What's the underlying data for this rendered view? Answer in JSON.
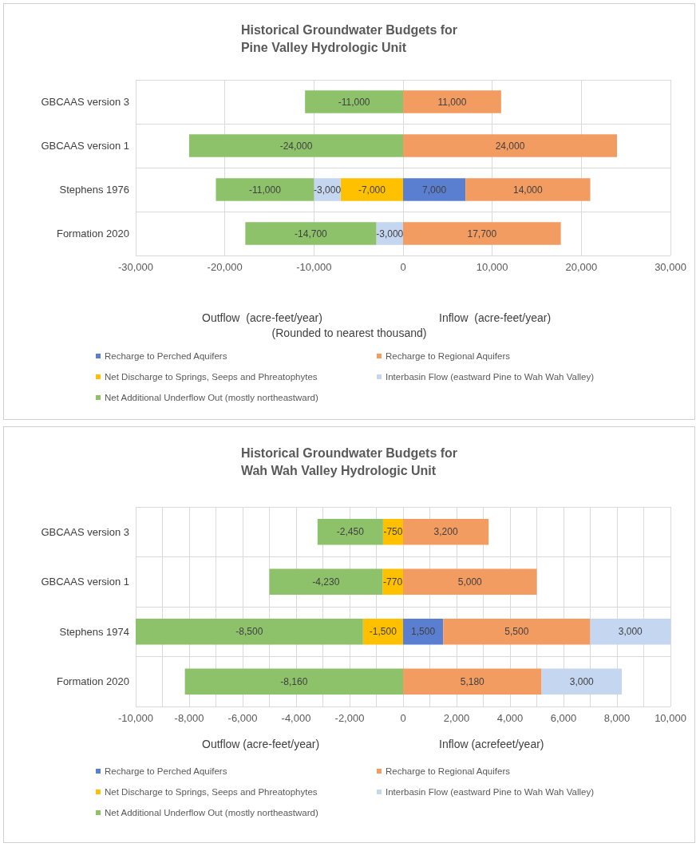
{
  "chart_data": [
    {
      "type": "bar",
      "orientation": "horizontal",
      "stacked": true,
      "title": "Historical Groundwater Budgets for\nPine Valley Hydrologic Unit",
      "xlabel": "Outflow  (acre-feet/year)",
      "annotations": [
        "Inflow  (acre-feet/year)",
        "(Rounded to nearest thousand)"
      ],
      "categories": [
        "GBCAAS version 3",
        "GBCAAS version 1",
        "Stephens 1976",
        "Formation 2020"
      ],
      "series": [
        {
          "name": "Recharge to Perched Aquifers",
          "color": "#5b7fd0",
          "values": [
            null,
            null,
            7000,
            null
          ],
          "value_labels": [
            null,
            null,
            "7,000",
            null
          ]
        },
        {
          "name": "Recharge to Regional Aquifers",
          "color": "#f39c62",
          "values": [
            11000,
            24000,
            14000,
            17700
          ],
          "value_labels": [
            "11,000",
            "24,000",
            "14,000",
            "17,700"
          ]
        },
        {
          "name": "Net Discharge to Springs, Seeps and Phreatophytes",
          "color": "#ffc000",
          "values": [
            null,
            null,
            -7000,
            null
          ],
          "value_labels": [
            null,
            null,
            "-7,000",
            null
          ]
        },
        {
          "name": "Interbasin Flow (eastward Pine to Wah Wah Valley)",
          "color": "#c5d6f0",
          "values": [
            null,
            null,
            -3000,
            -3000
          ],
          "value_labels": [
            null,
            null,
            "-3,000",
            "-3,000"
          ]
        },
        {
          "name": "Net Additional Underflow Out (mostly northeastward)",
          "color": "#8dc26b",
          "values": [
            -11000,
            -24000,
            -11000,
            -14700
          ],
          "value_labels": [
            "-11,000",
            "-24,000",
            "-11,000",
            "-14,700"
          ]
        }
      ],
      "xlim": [
        -30000,
        30000
      ],
      "xticks": [
        {
          "value": -30000,
          "label": "-30,000"
        },
        {
          "value": -20000,
          "label": "-20,000"
        },
        {
          "value": -10000,
          "label": "-10,000"
        },
        0,
        {
          "value": 10000,
          "label": "10,000"
        },
        {
          "value": 20000,
          "label": "20,000"
        },
        {
          "value": 30000,
          "label": "30,000"
        }
      ],
      "grid": true,
      "legend": "bottom"
    },
    {
      "type": "bar",
      "orientation": "horizontal",
      "stacked": true,
      "title": "Historical Groundwater Budgets for\nWah Wah Valley Hydrologic Unit",
      "xlabel": "Outflow (acre-feet/year)",
      "annotations": [
        "Inflow (acrefeet/year)"
      ],
      "categories": [
        "GBCAAS version 3",
        "GBCAAS version 1",
        "Stephens 1974",
        "Formation 2020"
      ],
      "series": [
        {
          "name": "Recharge to Perched Aquifers",
          "color": "#5b7fd0",
          "values": [
            null,
            null,
            1500,
            null
          ],
          "value_labels": [
            null,
            null,
            "1,500",
            null
          ]
        },
        {
          "name": "Recharge to Regional Aquifers",
          "color": "#f39c62",
          "values": [
            3200,
            5000,
            5500,
            5180
          ],
          "value_labels": [
            "3,200",
            "5,000",
            "5,500",
            "5,180"
          ]
        },
        {
          "name": "Net Discharge to Springs, Seeps and Phreatophytes",
          "color": "#ffc000",
          "values": [
            -750,
            -770,
            -1500,
            null
          ],
          "value_labels": [
            "-750",
            "-770",
            "-1,500",
            null
          ]
        },
        {
          "name": "Interbasin Flow (eastward Pine to Wah Wah Valley)",
          "color": "#c5d6f0",
          "values": [
            null,
            null,
            3000,
            3000
          ],
          "value_labels": [
            null,
            null,
            "3,000",
            "3,000"
          ]
        },
        {
          "name": "Net Additional Underflow Out (mostly northeastward)",
          "color": "#8dc26b",
          "values": [
            -2450,
            -4230,
            -8500,
            -8160
          ],
          "value_labels": [
            "-2,450",
            "-4,230",
            "-8,500",
            "-8,160"
          ]
        }
      ],
      "xlim": [
        -10000,
        10000
      ],
      "xticks": [
        {
          "value": -10000,
          "label": "-10,000"
        },
        {
          "value": -9000,
          "label": null
        },
        {
          "value": -8000,
          "label": "-8,000"
        },
        {
          "value": -7000,
          "label": null
        },
        {
          "value": -6000,
          "label": "-6,000"
        },
        {
          "value": -5000,
          "label": null
        },
        {
          "value": -4000,
          "label": "-4,000"
        },
        {
          "value": -3000,
          "label": null
        },
        {
          "value": -2000,
          "label": "-2,000"
        },
        {
          "value": -1000,
          "label": null
        },
        0,
        {
          "value": 1000,
          "label": null
        },
        {
          "value": 2000,
          "label": "2,000"
        },
        {
          "value": 3000,
          "label": null
        },
        {
          "value": 4000,
          "label": "4,000"
        },
        {
          "value": 5000,
          "label": null
        },
        {
          "value": 6000,
          "label": "6,000"
        },
        {
          "value": 7000,
          "label": null
        },
        {
          "value": 8000,
          "label": "8,000"
        },
        {
          "value": 9000,
          "label": null
        },
        {
          "value": 10000,
          "label": "10,000"
        }
      ],
      "grid": true,
      "legend": "bottom"
    }
  ]
}
